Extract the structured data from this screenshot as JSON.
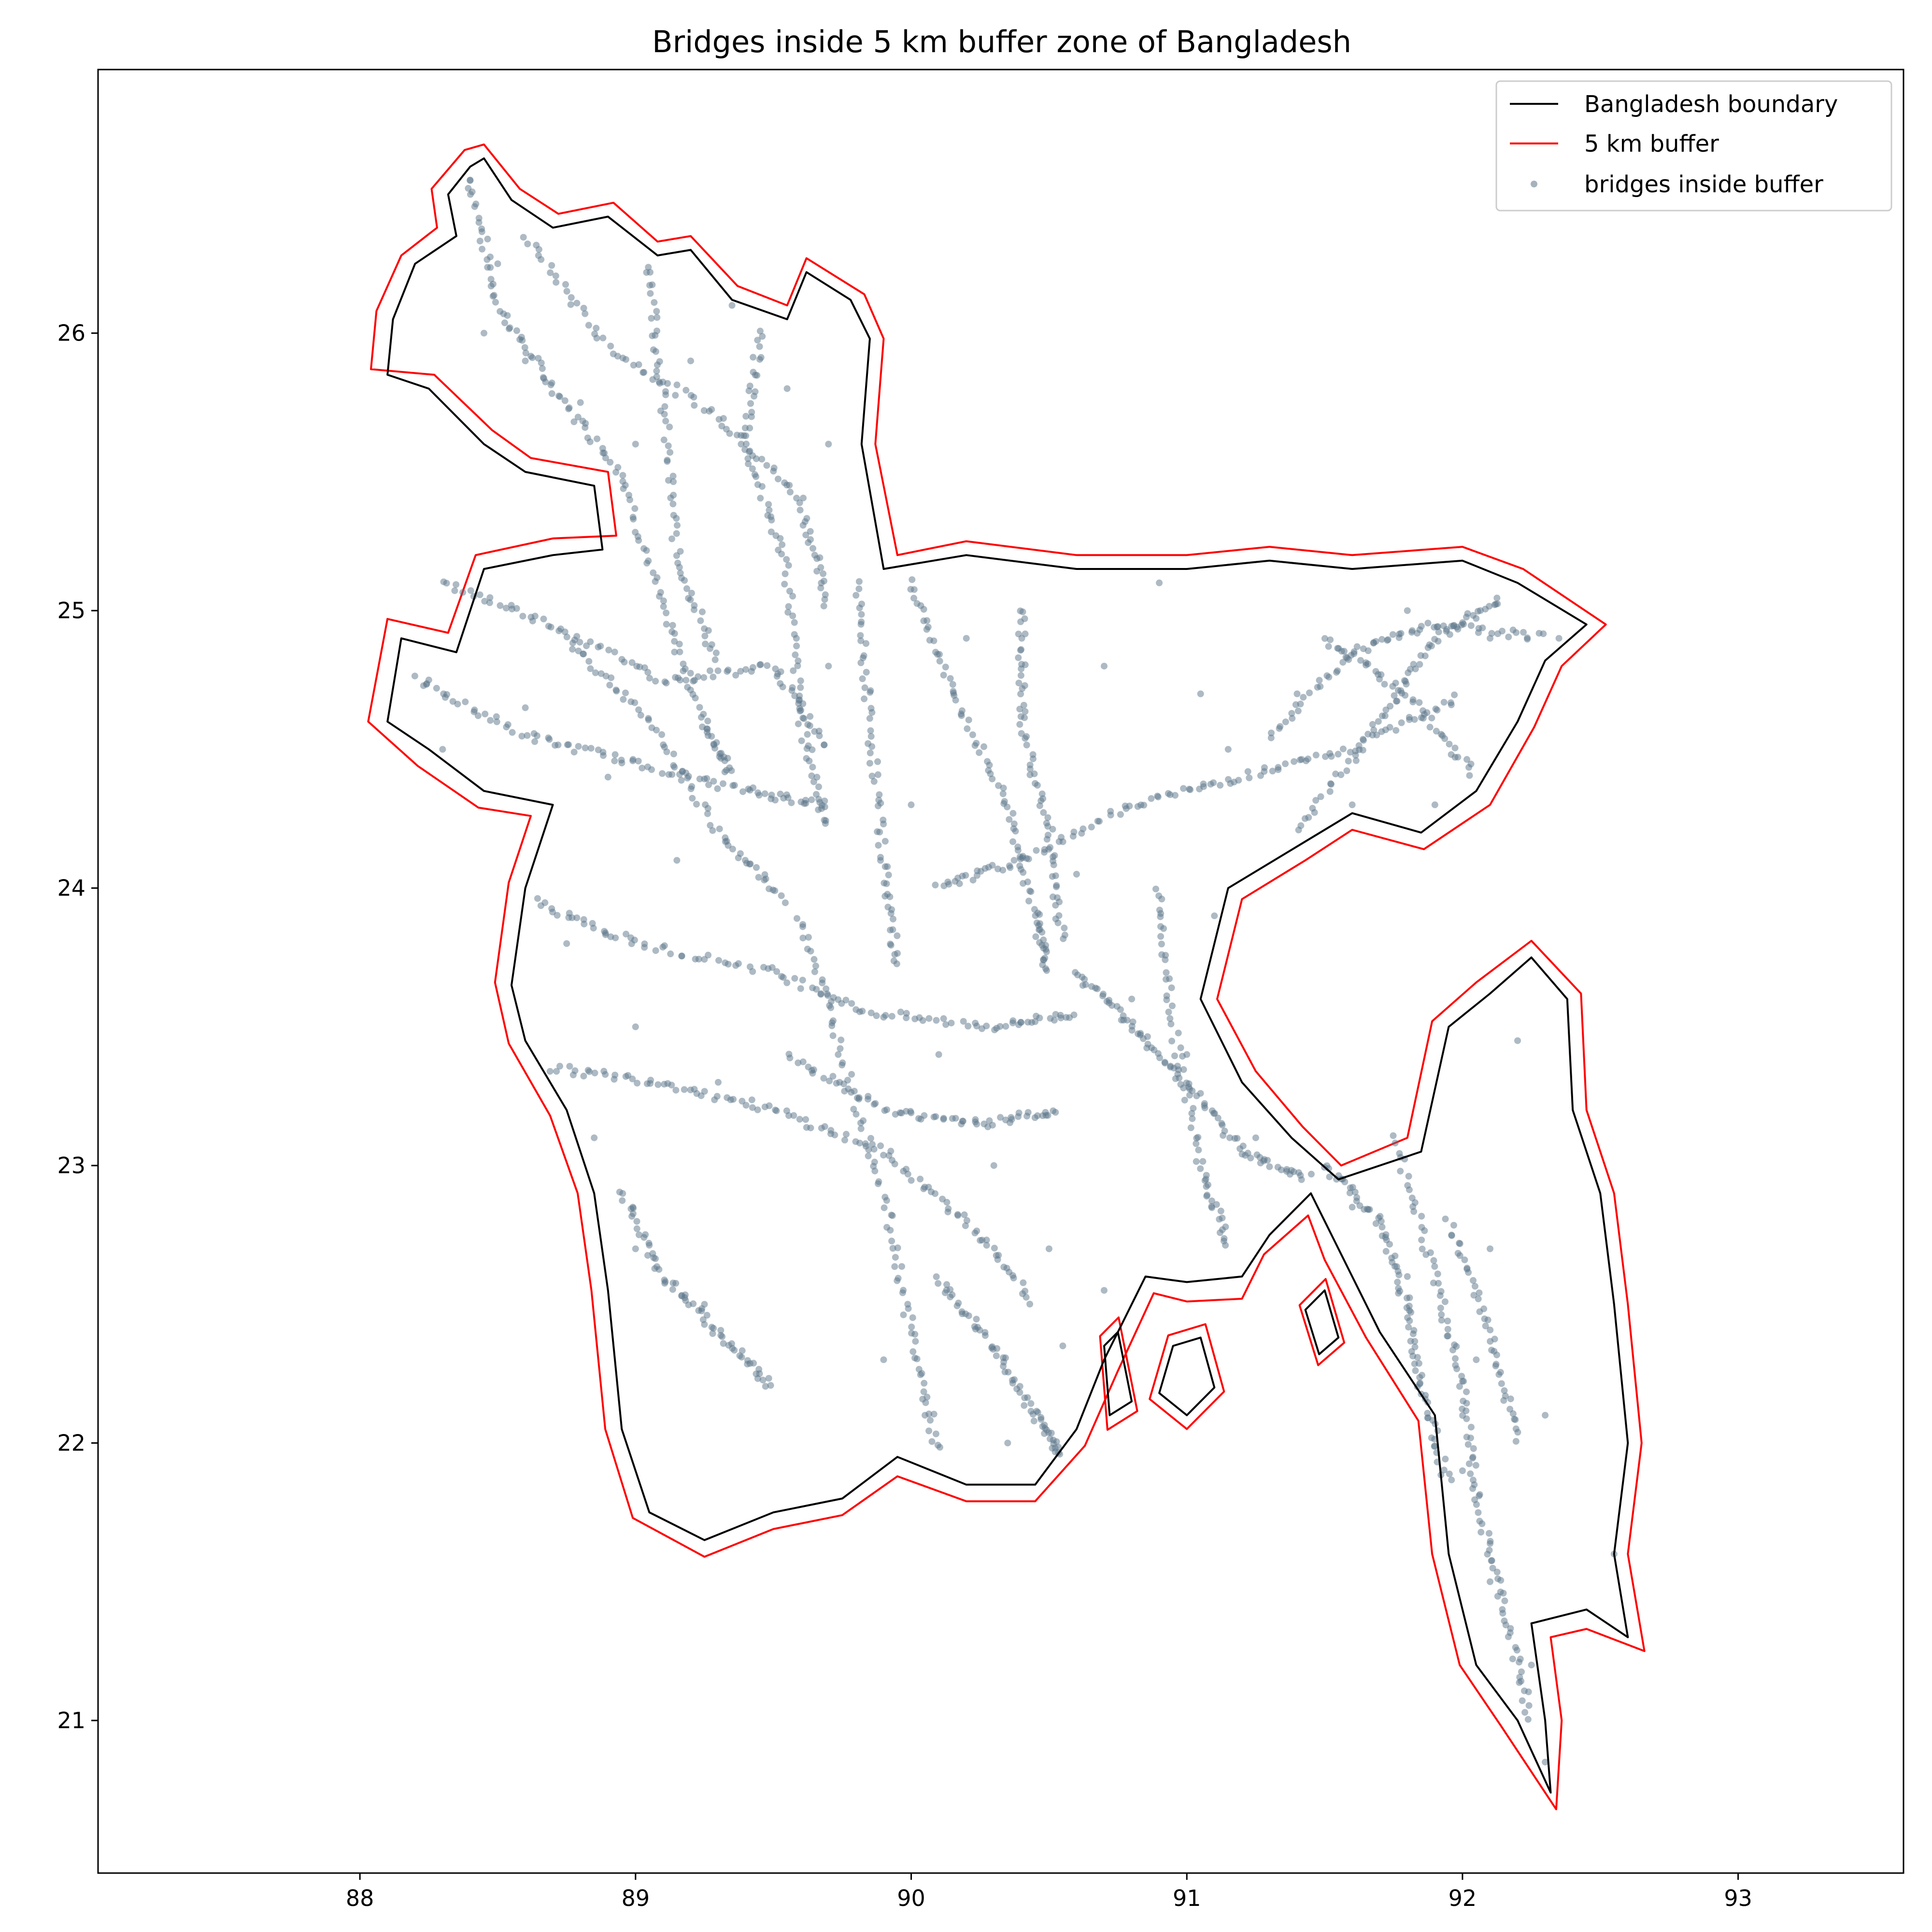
{
  "chart_data": {
    "type": "map-scatter",
    "title": "Bridges inside 5 km buffer zone of Bangladesh",
    "xlabel": "",
    "ylabel": "",
    "xlim": [
      87.05,
      93.6
    ],
    "ylim": [
      20.45,
      26.95
    ],
    "xticks": [
      88,
      89,
      90,
      91,
      92,
      93
    ],
    "yticks": [
      21,
      22,
      23,
      24,
      25,
      26
    ],
    "grid": false,
    "legend_position": "top-right",
    "colors": {
      "boundary": "#000000",
      "buffer": "#ff0000",
      "bridges": "#5b7589"
    },
    "legend": [
      {
        "label": "Bangladesh boundary",
        "kind": "line",
        "color": "#000000"
      },
      {
        "label": "5 km buffer",
        "kind": "line",
        "color": "#ff0000"
      },
      {
        "label": "bridges inside buffer",
        "kind": "point",
        "color": "#5b7589"
      }
    ],
    "boundary": [
      [
        88.45,
        26.63
      ],
      [
        88.55,
        26.48
      ],
      [
        88.7,
        26.38
      ],
      [
        88.9,
        26.42
      ],
      [
        89.08,
        26.28
      ],
      [
        89.2,
        26.3
      ],
      [
        89.35,
        26.12
      ],
      [
        89.55,
        26.05
      ],
      [
        89.62,
        26.22
      ],
      [
        89.78,
        26.12
      ],
      [
        89.85,
        25.98
      ],
      [
        89.82,
        25.6
      ],
      [
        89.9,
        25.15
      ],
      [
        90.2,
        25.2
      ],
      [
        90.6,
        25.15
      ],
      [
        91.0,
        25.15
      ],
      [
        91.3,
        25.18
      ],
      [
        91.6,
        25.15
      ],
      [
        92.0,
        25.18
      ],
      [
        92.2,
        25.1
      ],
      [
        92.45,
        24.95
      ],
      [
        92.3,
        24.82
      ],
      [
        92.2,
        24.6
      ],
      [
        92.05,
        24.35
      ],
      [
        91.85,
        24.2
      ],
      [
        91.6,
        24.27
      ],
      [
        91.4,
        24.15
      ],
      [
        91.15,
        24.0
      ],
      [
        91.05,
        23.6
      ],
      [
        91.2,
        23.3
      ],
      [
        91.38,
        23.1
      ],
      [
        91.55,
        22.95
      ],
      [
        91.85,
        23.05
      ],
      [
        91.95,
        23.5
      ],
      [
        92.1,
        23.62
      ],
      [
        92.25,
        23.75
      ],
      [
        92.38,
        23.6
      ],
      [
        92.4,
        23.2
      ],
      [
        92.5,
        22.9
      ],
      [
        92.55,
        22.5
      ],
      [
        92.6,
        22.0
      ],
      [
        92.55,
        21.6
      ],
      [
        92.6,
        21.3
      ],
      [
        92.45,
        21.4
      ],
      [
        92.25,
        21.35
      ],
      [
        92.3,
        21.0
      ],
      [
        92.32,
        20.74
      ],
      [
        92.2,
        21.0
      ],
      [
        92.05,
        21.2
      ],
      [
        91.95,
        21.6
      ],
      [
        91.9,
        22.1
      ],
      [
        91.7,
        22.4
      ],
      [
        91.55,
        22.7
      ],
      [
        91.45,
        22.9
      ],
      [
        91.3,
        22.75
      ],
      [
        91.2,
        22.6
      ],
      [
        91.0,
        22.58
      ],
      [
        90.85,
        22.6
      ],
      [
        90.7,
        22.3
      ],
      [
        90.6,
        22.05
      ],
      [
        90.45,
        21.85
      ],
      [
        90.2,
        21.85
      ],
      [
        89.95,
        21.95
      ],
      [
        89.75,
        21.8
      ],
      [
        89.5,
        21.75
      ],
      [
        89.25,
        21.65
      ],
      [
        89.05,
        21.75
      ],
      [
        88.95,
        22.05
      ],
      [
        88.9,
        22.55
      ],
      [
        88.85,
        22.9
      ],
      [
        88.75,
        23.2
      ],
      [
        88.6,
        23.45
      ],
      [
        88.55,
        23.65
      ],
      [
        88.6,
        24.0
      ],
      [
        88.7,
        24.3
      ],
      [
        88.45,
        24.35
      ],
      [
        88.25,
        24.5
      ],
      [
        88.1,
        24.6
      ],
      [
        88.15,
        24.9
      ],
      [
        88.35,
        24.85
      ],
      [
        88.45,
        25.15
      ],
      [
        88.7,
        25.2
      ],
      [
        88.88,
        25.22
      ],
      [
        88.85,
        25.45
      ],
      [
        88.6,
        25.5
      ],
      [
        88.45,
        25.6
      ],
      [
        88.25,
        25.8
      ],
      [
        88.1,
        25.85
      ],
      [
        88.12,
        26.05
      ],
      [
        88.2,
        26.25
      ],
      [
        88.35,
        26.35
      ],
      [
        88.32,
        26.5
      ],
      [
        88.4,
        26.6
      ]
    ],
    "buffer": [
      [
        88.45,
        26.68
      ],
      [
        88.58,
        26.52
      ],
      [
        88.72,
        26.43
      ],
      [
        88.92,
        26.47
      ],
      [
        89.08,
        26.33
      ],
      [
        89.2,
        26.35
      ],
      [
        89.37,
        26.17
      ],
      [
        89.55,
        26.1
      ],
      [
        89.62,
        26.27
      ],
      [
        89.83,
        26.14
      ],
      [
        89.9,
        25.98
      ],
      [
        89.87,
        25.6
      ],
      [
        89.95,
        25.2
      ],
      [
        90.2,
        25.25
      ],
      [
        90.6,
        25.2
      ],
      [
        91.0,
        25.2
      ],
      [
        91.3,
        25.23
      ],
      [
        91.6,
        25.2
      ],
      [
        92.0,
        25.23
      ],
      [
        92.22,
        25.15
      ],
      [
        92.52,
        24.95
      ],
      [
        92.36,
        24.8
      ],
      [
        92.26,
        24.58
      ],
      [
        92.1,
        24.3
      ],
      [
        91.86,
        24.14
      ],
      [
        91.6,
        24.21
      ],
      [
        91.43,
        24.1
      ],
      [
        91.2,
        23.96
      ],
      [
        91.11,
        23.6
      ],
      [
        91.25,
        23.34
      ],
      [
        91.42,
        23.14
      ],
      [
        91.56,
        23.0
      ],
      [
        91.8,
        23.1
      ],
      [
        91.89,
        23.52
      ],
      [
        92.05,
        23.66
      ],
      [
        92.25,
        23.81
      ],
      [
        92.43,
        23.62
      ],
      [
        92.45,
        23.2
      ],
      [
        92.55,
        22.9
      ],
      [
        92.6,
        22.5
      ],
      [
        92.65,
        22.0
      ],
      [
        92.6,
        21.6
      ],
      [
        92.66,
        21.25
      ],
      [
        92.45,
        21.33
      ],
      [
        92.32,
        21.3
      ],
      [
        92.36,
        21.0
      ],
      [
        92.34,
        20.68
      ],
      [
        92.14,
        20.98
      ],
      [
        91.99,
        21.2
      ],
      [
        91.89,
        21.6
      ],
      [
        91.84,
        22.08
      ],
      [
        91.65,
        22.38
      ],
      [
        91.5,
        22.66
      ],
      [
        91.44,
        22.82
      ],
      [
        91.28,
        22.68
      ],
      [
        91.2,
        22.52
      ],
      [
        91.0,
        22.51
      ],
      [
        90.88,
        22.54
      ],
      [
        90.75,
        22.26
      ],
      [
        90.63,
        21.99
      ],
      [
        90.45,
        21.79
      ],
      [
        90.2,
        21.79
      ],
      [
        89.95,
        21.88
      ],
      [
        89.75,
        21.74
      ],
      [
        89.5,
        21.69
      ],
      [
        89.25,
        21.59
      ],
      [
        88.99,
        21.73
      ],
      [
        88.89,
        22.05
      ],
      [
        88.84,
        22.55
      ],
      [
        88.79,
        22.9
      ],
      [
        88.69,
        23.18
      ],
      [
        88.54,
        23.44
      ],
      [
        88.49,
        23.66
      ],
      [
        88.54,
        24.02
      ],
      [
        88.62,
        24.26
      ],
      [
        88.43,
        24.29
      ],
      [
        88.21,
        24.44
      ],
      [
        88.03,
        24.6
      ],
      [
        88.1,
        24.97
      ],
      [
        88.32,
        24.92
      ],
      [
        88.42,
        25.2
      ],
      [
        88.7,
        25.26
      ],
      [
        88.93,
        25.27
      ],
      [
        88.9,
        25.5
      ],
      [
        88.62,
        25.55
      ],
      [
        88.48,
        25.65
      ],
      [
        88.27,
        25.85
      ],
      [
        88.04,
        25.87
      ],
      [
        88.06,
        26.08
      ],
      [
        88.15,
        26.28
      ],
      [
        88.28,
        26.38
      ],
      [
        88.26,
        26.52
      ],
      [
        88.38,
        26.66
      ]
    ],
    "islands": [
      [
        [
          91.43,
          22.48
        ],
        [
          91.5,
          22.55
        ],
        [
          91.55,
          22.38
        ],
        [
          91.48,
          22.32
        ]
      ],
      [
        [
          90.95,
          22.35
        ],
        [
          91.05,
          22.38
        ],
        [
          91.1,
          22.2
        ],
        [
          91.0,
          22.1
        ],
        [
          90.9,
          22.18
        ]
      ],
      [
        [
          90.7,
          22.35
        ],
        [
          90.75,
          22.4
        ],
        [
          90.8,
          22.15
        ],
        [
          90.72,
          22.1
        ]
      ]
    ],
    "roads": [
      [
        [
          88.4,
          26.55
        ],
        [
          88.5,
          26.1
        ],
        [
          88.7,
          25.8
        ],
        [
          88.95,
          25.5
        ],
        [
          89.1,
          25.0
        ],
        [
          89.25,
          24.6
        ],
        [
          89.35,
          24.4
        ]
      ],
      [
        [
          88.6,
          26.35
        ],
        [
          88.9,
          25.95
        ],
        [
          89.3,
          25.7
        ],
        [
          89.6,
          25.4
        ],
        [
          89.7,
          25.0
        ]
      ],
      [
        [
          89.05,
          26.25
        ],
        [
          89.1,
          25.75
        ],
        [
          89.15,
          25.2
        ],
        [
          89.3,
          24.8
        ]
      ],
      [
        [
          89.45,
          26.0
        ],
        [
          89.4,
          25.6
        ],
        [
          89.55,
          25.15
        ],
        [
          89.6,
          24.6
        ],
        [
          89.7,
          24.2
        ]
      ],
      [
        [
          88.2,
          24.75
        ],
        [
          88.6,
          24.55
        ],
        [
          89.0,
          24.45
        ],
        [
          89.4,
          24.35
        ],
        [
          89.7,
          24.3
        ]
      ],
      [
        [
          88.3,
          25.1
        ],
        [
          88.7,
          24.95
        ],
        [
          89.1,
          24.75
        ],
        [
          89.5,
          24.8
        ],
        [
          89.7,
          24.5
        ]
      ],
      [
        [
          88.65,
          23.95
        ],
        [
          89.0,
          23.8
        ],
        [
          89.5,
          23.7
        ],
        [
          89.85,
          23.55
        ],
        [
          90.3,
          23.5
        ],
        [
          90.6,
          23.55
        ]
      ],
      [
        [
          88.7,
          23.35
        ],
        [
          89.1,
          23.3
        ],
        [
          89.5,
          23.2
        ],
        [
          89.9,
          23.05
        ],
        [
          90.2,
          22.8
        ],
        [
          90.45,
          22.5
        ]
      ],
      [
        [
          88.95,
          22.9
        ],
        [
          89.1,
          22.6
        ],
        [
          89.3,
          22.4
        ],
        [
          89.5,
          22.2
        ]
      ],
      [
        [
          89.6,
          23.9
        ],
        [
          89.75,
          23.4
        ],
        [
          89.9,
          22.9
        ],
        [
          90.0,
          22.4
        ],
        [
          90.1,
          21.95
        ]
      ],
      [
        [
          89.8,
          25.1
        ],
        [
          89.85,
          24.6
        ],
        [
          89.9,
          24.1
        ],
        [
          89.95,
          23.7
        ]
      ],
      [
        [
          90.0,
          25.1
        ],
        [
          90.15,
          24.7
        ],
        [
          90.35,
          24.3
        ],
        [
          90.45,
          23.9
        ],
        [
          90.5,
          23.7
        ]
      ],
      [
        [
          90.4,
          25.0
        ],
        [
          90.4,
          24.6
        ],
        [
          90.5,
          24.2
        ],
        [
          90.55,
          23.8
        ]
      ],
      [
        [
          90.1,
          24.0
        ],
        [
          90.4,
          24.1
        ],
        [
          90.8,
          24.3
        ],
        [
          91.2,
          24.4
        ],
        [
          91.6,
          24.5
        ],
        [
          92.0,
          24.7
        ]
      ],
      [
        [
          91.3,
          24.55
        ],
        [
          91.6,
          24.85
        ],
        [
          91.9,
          24.95
        ],
        [
          92.3,
          24.9
        ]
      ],
      [
        [
          91.4,
          24.2
        ],
        [
          91.7,
          24.6
        ],
        [
          91.9,
          24.9
        ],
        [
          92.15,
          25.05
        ]
      ],
      [
        [
          91.5,
          24.9
        ],
        [
          91.8,
          24.7
        ],
        [
          92.05,
          24.4
        ]
      ],
      [
        [
          90.6,
          23.7
        ],
        [
          90.8,
          23.5
        ],
        [
          91.0,
          23.3
        ],
        [
          91.2,
          23.05
        ],
        [
          91.45,
          22.95
        ]
      ],
      [
        [
          90.9,
          24.0
        ],
        [
          90.95,
          23.5
        ],
        [
          91.05,
          23.0
        ],
        [
          91.15,
          22.7
        ]
      ],
      [
        [
          91.5,
          23.0
        ],
        [
          91.7,
          22.8
        ],
        [
          91.8,
          22.5
        ],
        [
          91.85,
          22.2
        ],
        [
          91.95,
          21.85
        ]
      ],
      [
        [
          91.75,
          23.1
        ],
        [
          91.9,
          22.6
        ],
        [
          92.0,
          22.2
        ],
        [
          92.05,
          21.8
        ],
        [
          92.15,
          21.4
        ],
        [
          92.25,
          21.0
        ]
      ],
      [
        [
          91.95,
          22.8
        ],
        [
          92.1,
          22.4
        ],
        [
          92.2,
          22.0
        ]
      ],
      [
        [
          90.1,
          22.6
        ],
        [
          90.3,
          22.35
        ],
        [
          90.45,
          22.1
        ],
        [
          90.55,
          21.95
        ]
      ],
      [
        [
          89.55,
          23.4
        ],
        [
          89.9,
          23.2
        ],
        [
          90.25,
          23.15
        ],
        [
          90.55,
          23.2
        ]
      ],
      [
        [
          88.75,
          24.9
        ],
        [
          89.05,
          24.6
        ],
        [
          89.3,
          24.2
        ],
        [
          89.55,
          23.95
        ]
      ]
    ],
    "scatter_samples": [
      [
        88.4,
        26.55
      ],
      [
        88.5,
        26.25
      ],
      [
        88.45,
        26.0
      ],
      [
        88.6,
        25.9
      ],
      [
        88.8,
        25.75
      ],
      [
        89.0,
        25.6
      ],
      [
        89.2,
        25.9
      ],
      [
        89.35,
        26.1
      ],
      [
        89.55,
        25.8
      ],
      [
        89.7,
        25.6
      ],
      [
        89.65,
        25.2
      ],
      [
        88.25,
        24.75
      ],
      [
        88.3,
        24.5
      ],
      [
        88.6,
        24.65
      ],
      [
        88.9,
        24.4
      ],
      [
        89.15,
        24.1
      ],
      [
        88.75,
        23.8
      ],
      [
        89.0,
        23.5
      ],
      [
        89.3,
        23.3
      ],
      [
        88.85,
        23.1
      ],
      [
        89.0,
        22.7
      ],
      [
        89.25,
        22.5
      ],
      [
        89.45,
        22.25
      ],
      [
        89.9,
        22.3
      ],
      [
        90.05,
        22.1
      ],
      [
        90.35,
        22.0
      ],
      [
        90.55,
        22.35
      ],
      [
        90.2,
        24.9
      ],
      [
        90.7,
        24.8
      ],
      [
        91.15,
        24.5
      ],
      [
        91.4,
        24.7
      ],
      [
        91.8,
        25.0
      ],
      [
        92.1,
        24.9
      ],
      [
        92.35,
        24.9
      ],
      [
        91.9,
        24.3
      ],
      [
        91.6,
        24.3
      ],
      [
        91.1,
        23.9
      ],
      [
        90.8,
        23.6
      ],
      [
        91.0,
        23.4
      ],
      [
        91.25,
        23.1
      ],
      [
        91.6,
        22.85
      ],
      [
        91.8,
        22.6
      ],
      [
        92.1,
        22.7
      ],
      [
        92.05,
        22.3
      ],
      [
        92.3,
        22.1
      ],
      [
        92.0,
        21.9
      ],
      [
        92.1,
        21.5
      ],
      [
        92.25,
        21.2
      ],
      [
        92.3,
        20.85
      ],
      [
        92.55,
        21.6
      ],
      [
        92.2,
        23.45
      ],
      [
        90.1,
        23.4
      ],
      [
        90.3,
        23.0
      ],
      [
        90.5,
        22.7
      ],
      [
        90.7,
        22.55
      ],
      [
        89.7,
        24.8
      ],
      [
        90.0,
        24.3
      ],
      [
        90.6,
        24.05
      ],
      [
        91.05,
        24.7
      ],
      [
        90.9,
        25.1
      ]
    ]
  }
}
